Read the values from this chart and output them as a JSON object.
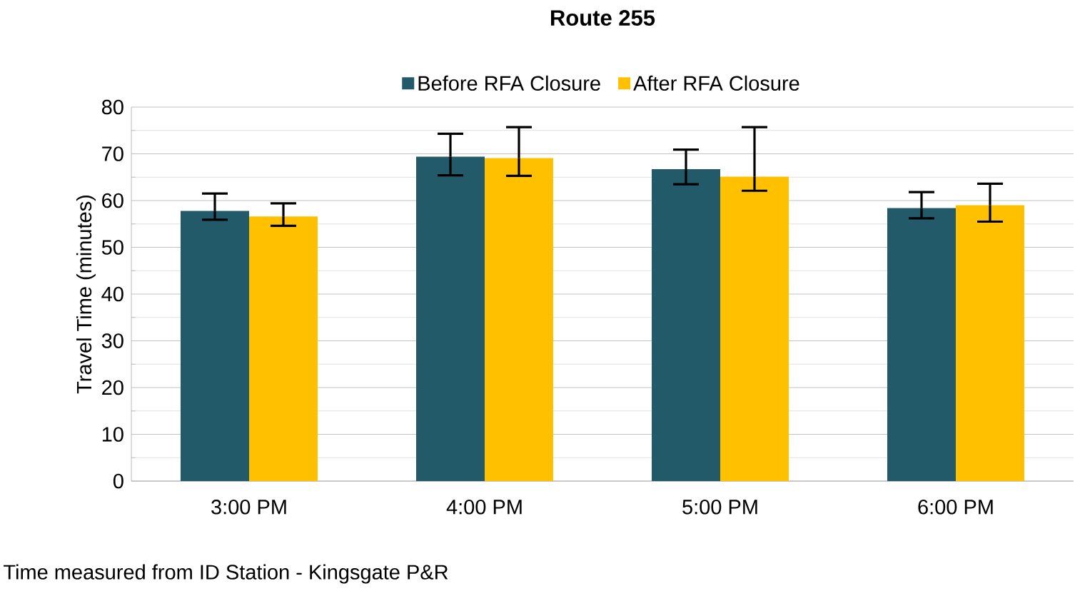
{
  "chart_data": {
    "type": "bar",
    "title": "Route 255",
    "ylabel": "Travel Time (minutes)",
    "xlabel": "Time measured from ID Station - Kingsgate P&R",
    "categories": [
      "3:00 PM",
      "4:00 PM",
      "5:00 PM",
      "6:00 PM"
    ],
    "series": [
      {
        "name": "Before RFA Closure",
        "color": "#225a6a",
        "values": [
          57.8,
          69.4,
          66.7,
          58.4
        ],
        "errors": [
          [
            55.9,
            61.5
          ],
          [
            65.4,
            74.3
          ],
          [
            63.5,
            70.9
          ],
          [
            56.2,
            61.8
          ]
        ]
      },
      {
        "name": "After RFA Closure",
        "color": "#ffc000",
        "values": [
          56.6,
          69.1,
          65.1,
          59.0
        ],
        "errors": [
          [
            54.6,
            59.4
          ],
          [
            65.3,
            75.7
          ],
          [
            62.1,
            75.7
          ],
          [
            55.5,
            63.6
          ]
        ]
      }
    ],
    "ylim": [
      0,
      80
    ],
    "yticks": [
      0,
      10,
      20,
      30,
      40,
      50,
      60,
      70,
      80
    ],
    "grid": "y",
    "legend": "top"
  }
}
